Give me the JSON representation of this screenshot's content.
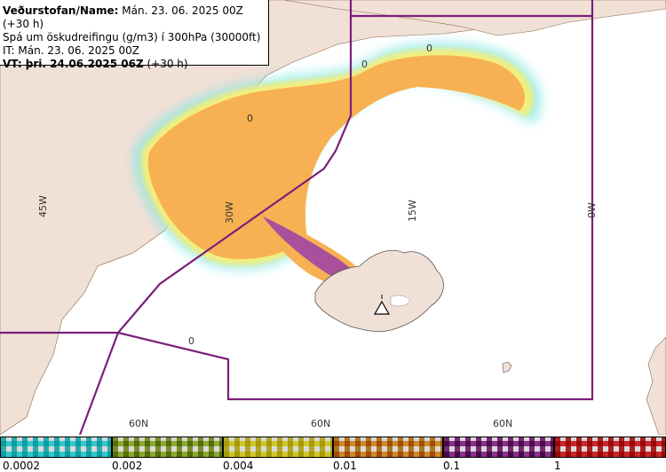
{
  "header": {
    "line1_bold": "Veðurstofan/Name:",
    "line1_rest": " Mán. 23. 06. 2025 00Z (+30 h)",
    "line2": "Spá um öskudreifingu (g/m3) í 300hPa (30000ft)",
    "line3": "IT: Mán. 23. 06. 2025 00Z",
    "line4_bold": "VT: þri. 24.06.2025 06Z",
    "line4_rest": " (+30 h)"
  },
  "map": {
    "longitude_labels": [
      "45W",
      "30W",
      "15W",
      "0W"
    ],
    "latitude_labels": [
      "60N",
      "60N",
      "60N"
    ],
    "zero_markers": [
      "0",
      "0",
      "0",
      "0"
    ],
    "colors": {
      "land": "#f0e0d6",
      "sea": "#ffffff",
      "ash_orange": "#f7b152",
      "ash_yellow": "#f2ee7e",
      "ash_cyan": "#7ee6e6",
      "ash_purple": "#9a3fa8",
      "boundary": "#7a1f7a"
    },
    "volcano_icon": "triangle-volcano-icon"
  },
  "legend": {
    "ticks": [
      "0.0002",
      "0.002",
      "0.004",
      "0.01",
      "0.1",
      "1"
    ],
    "colors": [
      "#32c8cc",
      "#8fa830",
      "#cfc62a",
      "#cc8a28",
      "#8a2f8a",
      "#c8282a"
    ]
  }
}
